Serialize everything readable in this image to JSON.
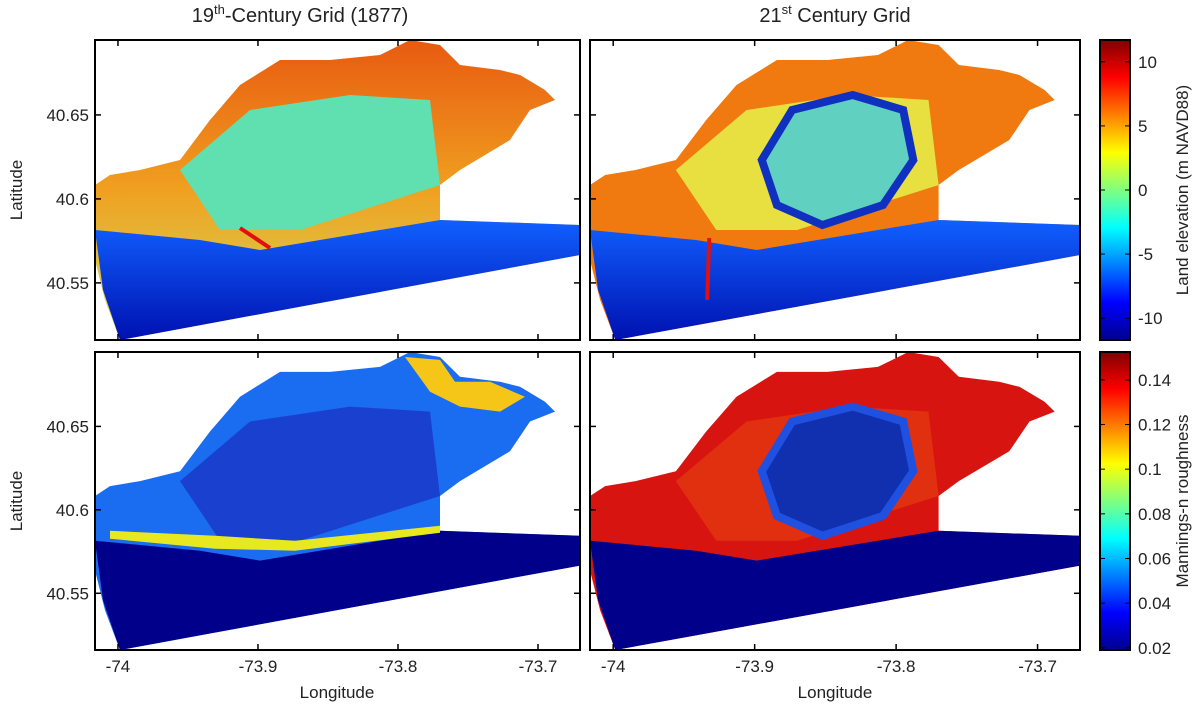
{
  "columns": [
    {
      "title": [
        "19",
        "th",
        "-Century Grid (1877)"
      ]
    },
    {
      "title": [
        "21",
        "st",
        " Century Grid"
      ]
    }
  ],
  "rows": [
    {
      "y_label": "Latitude",
      "colorbar": {
        "label": "Land elevation (m NAVD88)",
        "lim": [
          -11.7,
          11.7
        ],
        "ticks": [
          -10,
          -5,
          0,
          5,
          10
        ]
      }
    },
    {
      "y_label": "Latitude",
      "colorbar": {
        "label": "Mannings-n roughness",
        "lim": [
          0.019,
          0.1525
        ],
        "ticks": [
          0.02,
          0.04,
          0.06,
          0.08,
          0.1,
          0.12,
          0.14
        ]
      }
    }
  ],
  "x_labels": [
    "Longitude",
    "Longitude"
  ],
  "axes": {
    "xlim": [
      -74.0164,
      -73.67
    ],
    "ylim": [
      40.516,
      40.6946
    ],
    "xticks": [
      -74,
      -73.9,
      -73.8,
      -73.7
    ],
    "yticks": [
      40.55,
      40.6,
      40.65
    ]
  }
}
